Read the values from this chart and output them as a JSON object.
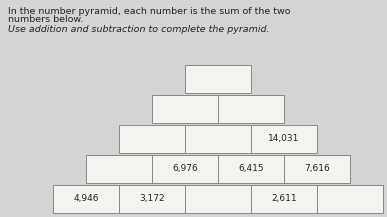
{
  "title_line1": "In the number pyramid, each number is the sum of the two",
  "title_line2": "numbers below.",
  "subtitle": "Use addition and subtraction to complete the pyramid.",
  "bg_color": "#d4d4d4",
  "box_facecolor": "#f5f3f0",
  "box_edgecolor": "#888888",
  "text_color": "#222222",
  "rows": [
    [
      {
        "label": "",
        "col": 2
      }
    ],
    [
      {
        "label": "",
        "col": 1
      },
      {
        "label": "",
        "col": 2
      }
    ],
    [
      {
        "label": "",
        "col": 0
      },
      {
        "label": "",
        "col": 1
      },
      {
        "label": "14,031",
        "col": 2
      }
    ],
    [
      {
        "label": "",
        "col": 0
      },
      {
        "label": "6,976",
        "col": 1
      },
      {
        "label": "6,415",
        "col": 2
      },
      {
        "label": "7,616",
        "col": 3
      }
    ],
    [
      {
        "label": "4,946",
        "col": 0
      },
      {
        "label": "3,172",
        "col": 1
      },
      {
        "label": "",
        "col": 2
      },
      {
        "label": "2,611",
        "col": 3
      },
      {
        "label": "",
        "col": 4
      }
    ]
  ],
  "font_size": 6.5,
  "title_font_size": 6.8,
  "lw": 0.7
}
